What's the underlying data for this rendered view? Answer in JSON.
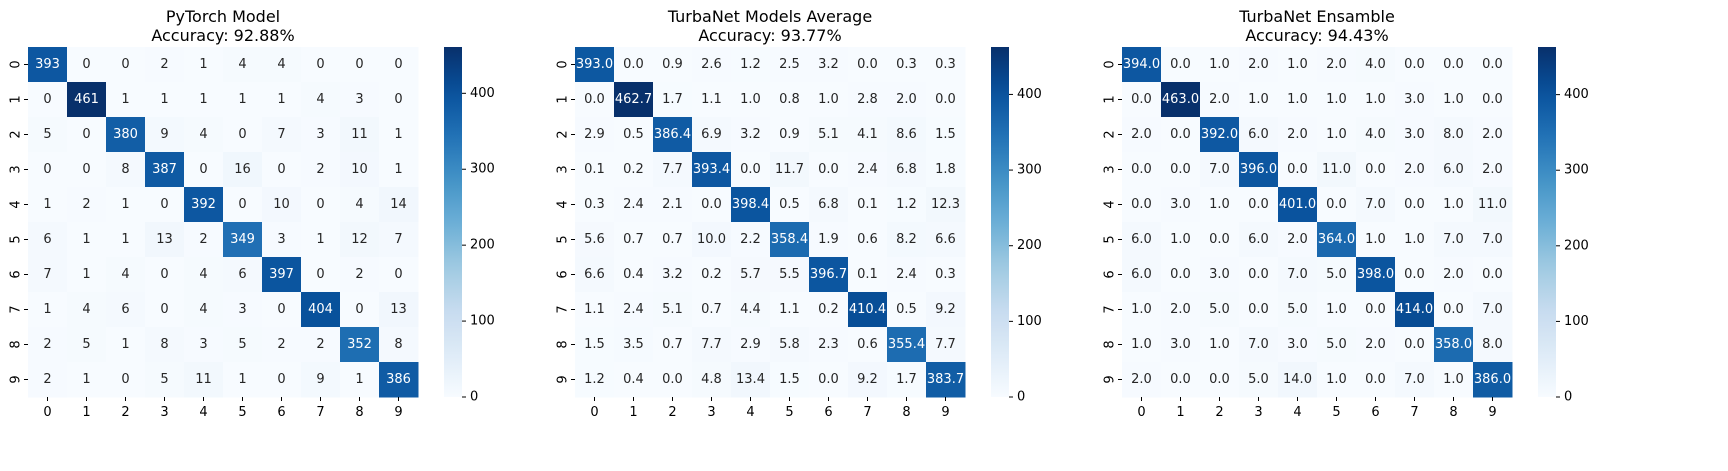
{
  "chart_data": [
    {
      "type": "heatmap",
      "title": "PyTorch Model\nAccuracy: 92.88%",
      "row_labels": [
        "0",
        "1",
        "2",
        "3",
        "4",
        "5",
        "6",
        "7",
        "8",
        "9"
      ],
      "col_labels": [
        "0",
        "1",
        "2",
        "3",
        "4",
        "5",
        "6",
        "7",
        "8",
        "9"
      ],
      "value_format": "int",
      "colorbar": {
        "vmin": 0,
        "vmax": 461,
        "ticks": [
          0,
          100,
          200,
          300,
          400
        ],
        "cmap": "Blues"
      },
      "matrix": [
        [
          393,
          0,
          0,
          2,
          1,
          4,
          4,
          0,
          0,
          0
        ],
        [
          0,
          461,
          1,
          1,
          1,
          1,
          1,
          4,
          3,
          0
        ],
        [
          5,
          0,
          380,
          9,
          4,
          0,
          7,
          3,
          11,
          1
        ],
        [
          0,
          0,
          8,
          387,
          0,
          16,
          0,
          2,
          10,
          1
        ],
        [
          1,
          2,
          1,
          0,
          392,
          0,
          10,
          0,
          4,
          14
        ],
        [
          6,
          1,
          1,
          13,
          2,
          349,
          3,
          1,
          12,
          7
        ],
        [
          7,
          1,
          4,
          0,
          4,
          6,
          397,
          0,
          2,
          0
        ],
        [
          1,
          4,
          6,
          0,
          4,
          3,
          0,
          404,
          0,
          13
        ],
        [
          2,
          5,
          1,
          8,
          3,
          5,
          2,
          2,
          352,
          8
        ],
        [
          2,
          1,
          0,
          5,
          11,
          1,
          0,
          9,
          1,
          386
        ]
      ]
    },
    {
      "type": "heatmap",
      "title": "TurbaNet Models Average\nAccuracy: 93.77%",
      "row_labels": [
        "0",
        "1",
        "2",
        "3",
        "4",
        "5",
        "6",
        "7",
        "8",
        "9"
      ],
      "col_labels": [
        "0",
        "1",
        "2",
        "3",
        "4",
        "5",
        "6",
        "7",
        "8",
        "9"
      ],
      "value_format": "1dp",
      "colorbar": {
        "vmin": 0,
        "vmax": 462.7,
        "ticks": [
          0,
          100,
          200,
          300,
          400
        ],
        "cmap": "Blues"
      },
      "matrix": [
        [
          393.0,
          0.0,
          0.9,
          2.6,
          1.2,
          2.5,
          3.2,
          0.0,
          0.3,
          0.3
        ],
        [
          0.0,
          462.7,
          1.7,
          1.1,
          1.0,
          0.8,
          1.0,
          2.8,
          2.0,
          0.0
        ],
        [
          2.9,
          0.5,
          386.4,
          6.9,
          3.2,
          0.9,
          5.1,
          4.1,
          8.6,
          1.5
        ],
        [
          0.1,
          0.2,
          7.7,
          393.4,
          0.0,
          11.7,
          0.0,
          2.4,
          6.8,
          1.8
        ],
        [
          0.3,
          2.4,
          2.1,
          0.0,
          398.4,
          0.5,
          6.8,
          0.1,
          1.2,
          12.3
        ],
        [
          5.6,
          0.7,
          0.7,
          10.0,
          2.2,
          358.4,
          1.9,
          0.6,
          8.2,
          6.6
        ],
        [
          6.6,
          0.4,
          3.2,
          0.2,
          5.7,
          5.5,
          396.7,
          0.1,
          2.4,
          0.3
        ],
        [
          1.1,
          2.4,
          5.1,
          0.7,
          4.4,
          1.1,
          0.2,
          410.4,
          0.5,
          9.2
        ],
        [
          1.5,
          3.5,
          0.7,
          7.7,
          2.9,
          5.8,
          2.3,
          0.6,
          355.4,
          7.7
        ],
        [
          1.2,
          0.4,
          0.0,
          4.8,
          13.4,
          1.5,
          0.0,
          9.2,
          1.7,
          383.7
        ]
      ]
    },
    {
      "type": "heatmap",
      "title": "TurbaNet Ensamble\nAccuracy: 94.43%",
      "row_labels": [
        "0",
        "1",
        "2",
        "3",
        "4",
        "5",
        "6",
        "7",
        "8",
        "9"
      ],
      "col_labels": [
        "0",
        "1",
        "2",
        "3",
        "4",
        "5",
        "6",
        "7",
        "8",
        "9"
      ],
      "value_format": "1dp",
      "colorbar": {
        "vmin": 0,
        "vmax": 463,
        "ticks": [
          0,
          100,
          200,
          300,
          400
        ],
        "cmap": "Blues"
      },
      "matrix": [
        [
          394.0,
          0.0,
          1.0,
          2.0,
          1.0,
          2.0,
          4.0,
          0.0,
          0.0,
          0.0
        ],
        [
          0.0,
          463.0,
          2.0,
          1.0,
          1.0,
          1.0,
          1.0,
          3.0,
          1.0,
          0.0
        ],
        [
          2.0,
          0.0,
          392.0,
          6.0,
          2.0,
          1.0,
          4.0,
          3.0,
          8.0,
          2.0
        ],
        [
          0.0,
          0.0,
          7.0,
          396.0,
          0.0,
          11.0,
          0.0,
          2.0,
          6.0,
          2.0
        ],
        [
          0.0,
          3.0,
          1.0,
          0.0,
          401.0,
          0.0,
          7.0,
          0.0,
          1.0,
          11.0
        ],
        [
          6.0,
          1.0,
          0.0,
          6.0,
          2.0,
          364.0,
          1.0,
          1.0,
          7.0,
          7.0
        ],
        [
          6.0,
          0.0,
          3.0,
          0.0,
          7.0,
          5.0,
          398.0,
          0.0,
          2.0,
          0.0
        ],
        [
          1.0,
          2.0,
          5.0,
          0.0,
          5.0,
          1.0,
          0.0,
          414.0,
          0.0,
          7.0
        ],
        [
          1.0,
          3.0,
          1.0,
          7.0,
          3.0,
          5.0,
          2.0,
          0.0,
          358.0,
          8.0
        ],
        [
          2.0,
          0.0,
          0.0,
          5.0,
          14.0,
          1.0,
          0.0,
          7.0,
          1.0,
          386.0
        ]
      ]
    }
  ]
}
